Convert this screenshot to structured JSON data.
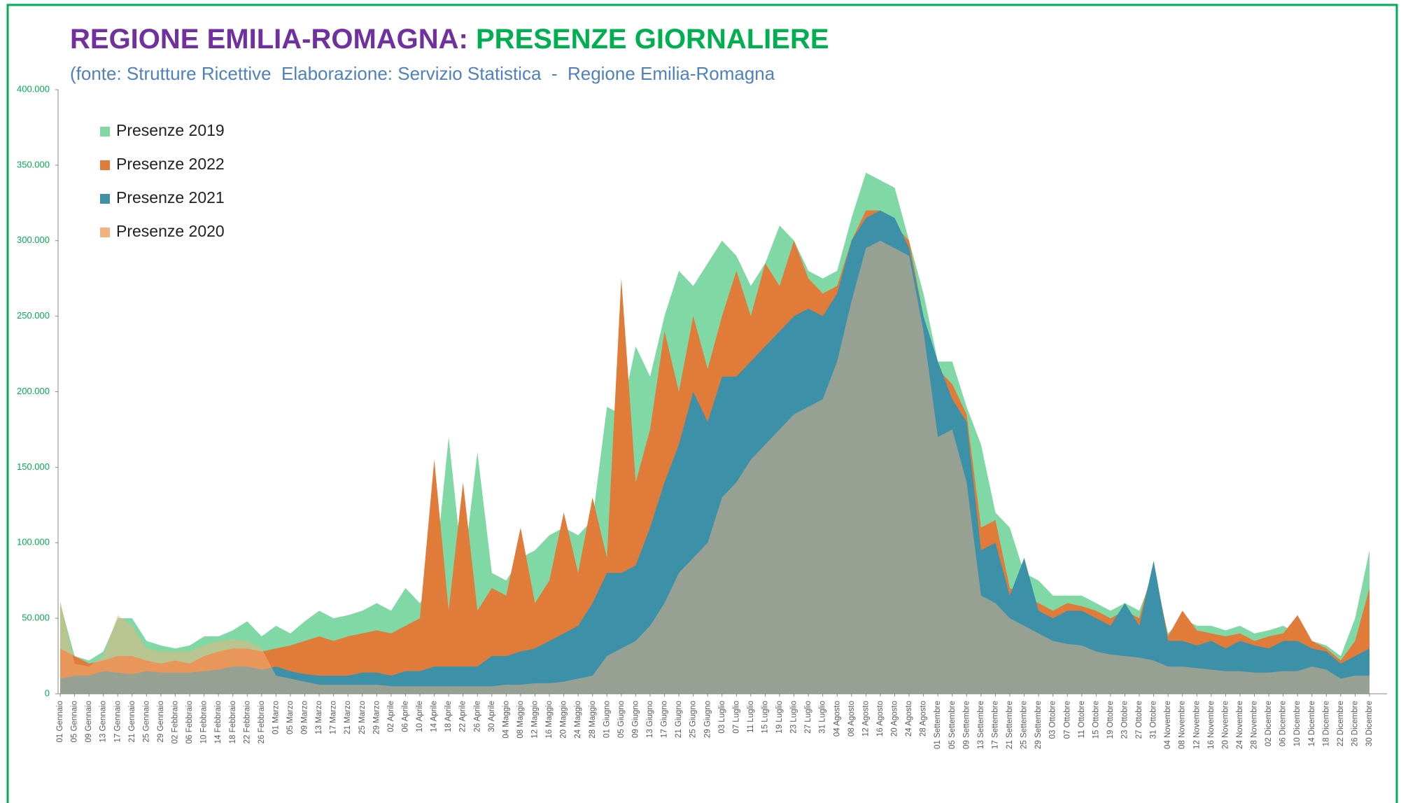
{
  "chart_data": {
    "type": "area",
    "title": "REGIONE EMILIA-ROMAGNA:",
    "title_highlight": "PRESENZE GIORNALIERE",
    "subtitle": "(fonte: Strutture Ricettive  Elaborazione: Servizio Statistica  -  Regione Emilia-Romagna",
    "categories": [
      "01 Gennaio",
      "05 Gennaio",
      "09 Gennaio",
      "13 Gennaio",
      "17 Gennaio",
      "21 Gennaio",
      "25 Gennaio",
      "29 Gennaio",
      "02 Febbraio",
      "06 Febbraio",
      "10 Febbraio",
      "14 Febbraio",
      "18 Febbraio",
      "22 Febbraio",
      "26 Febbraio",
      "01 Marzo",
      "05 Marzo",
      "09 Marzo",
      "13 Marzo",
      "17 Marzo",
      "21 Marzo",
      "25 Marzo",
      "29 Marzo",
      "02 Aprile",
      "06 Aprile",
      "10 Aprile",
      "14 Aprile",
      "18 Aprile",
      "22 Aprile",
      "26 Aprile",
      "30 Aprile",
      "04 Maggio",
      "08 Maggio",
      "12 Maggio",
      "16 Maggio",
      "20 Maggio",
      "24 Maggio",
      "28 Maggio",
      "01 Giugno",
      "05 Giugno",
      "09 Giugno",
      "13 Giugno",
      "17 Giugno",
      "21 Giugno",
      "25 Giugno",
      "29 Giugno",
      "03 Luglio",
      "07 Luglio",
      "11 Luglio",
      "15 Luglio",
      "19 Luglio",
      "23 Luglio",
      "27 Luglio",
      "31 Luglio",
      "04 Agosto",
      "08 Agosto",
      "12 Agosto",
      "16 Agosto",
      "20 Agosto",
      "24 Agosto",
      "28 Agosto",
      "01 Settembre",
      "05 Settembre",
      "09 Settembre",
      "13 Settembre",
      "17 Settembre",
      "21 Settembre",
      "25 Settembre",
      "29 Settembre",
      "03 Ottobre",
      "07 Ottobre",
      "11 Ottobre",
      "15 Ottobre",
      "19 Ottobre",
      "23 Ottobre",
      "27 Ottobre",
      "31 Ottobre",
      "04 Novembre",
      "08 Novembre",
      "12 Novembre",
      "16 Novembre",
      "20 Novembre",
      "24 Novembre",
      "28 Novembre",
      "02 Dicembre",
      "06 Dicembre",
      "10 Dicembre",
      "14 Dicembre",
      "18 Dicembre",
      "22 Dicembre",
      "26 Dicembre",
      "30 Dicembre"
    ],
    "series": [
      {
        "name": "Presenze 2019",
        "color": "#80d8a4",
        "values": [
          60000,
          25000,
          22000,
          28000,
          50000,
          50000,
          35000,
          32000,
          30000,
          32000,
          38000,
          38000,
          42000,
          48000,
          38000,
          45000,
          40000,
          48000,
          55000,
          50000,
          52000,
          55000,
          60000,
          55000,
          70000,
          60000,
          75000,
          170000,
          80000,
          160000,
          80000,
          75000,
          90000,
          95000,
          105000,
          110000,
          105000,
          115000,
          190000,
          185000,
          230000,
          210000,
          250000,
          280000,
          270000,
          285000,
          300000,
          290000,
          270000,
          285000,
          310000,
          300000,
          280000,
          275000,
          280000,
          315000,
          345000,
          340000,
          335000,
          300000,
          265000,
          220000,
          220000,
          190000,
          165000,
          120000,
          110000,
          80000,
          75000,
          65000,
          65000,
          65000,
          60000,
          55000,
          60000,
          55000,
          80000,
          40000,
          50000,
          45000,
          45000,
          42000,
          45000,
          40000,
          42000,
          45000,
          40000,
          35000,
          32000,
          25000,
          50000,
          95000
        ]
      },
      {
        "name": "Presenze 2022",
        "color": "#e07b39",
        "values": [
          30000,
          25000,
          20000,
          22000,
          25000,
          25000,
          22000,
          20000,
          22000,
          20000,
          25000,
          28000,
          30000,
          30000,
          28000,
          30000,
          32000,
          35000,
          38000,
          35000,
          38000,
          40000,
          42000,
          40000,
          45000,
          50000,
          155000,
          55000,
          140000,
          55000,
          70000,
          65000,
          110000,
          60000,
          75000,
          120000,
          80000,
          130000,
          90000,
          275000,
          140000,
          175000,
          240000,
          200000,
          250000,
          215000,
          250000,
          280000,
          250000,
          285000,
          270000,
          300000,
          275000,
          265000,
          270000,
          300000,
          320000,
          320000,
          310000,
          300000,
          250000,
          215000,
          205000,
          185000,
          110000,
          115000,
          70000,
          65000,
          60000,
          55000,
          60000,
          58000,
          55000,
          50000,
          55000,
          50000,
          85000,
          38000,
          55000,
          42000,
          40000,
          38000,
          40000,
          35000,
          38000,
          40000,
          52000,
          35000,
          30000,
          22000,
          35000,
          70000
        ]
      },
      {
        "name": "Presenze 2021",
        "color": "#3c91a8",
        "values": [
          10000,
          12000,
          12000,
          15000,
          14000,
          13000,
          15000,
          14000,
          14000,
          14000,
          15000,
          16000,
          18000,
          18000,
          16000,
          18000,
          15000,
          13000,
          12000,
          12000,
          12000,
          14000,
          14000,
          12000,
          15000,
          15000,
          18000,
          18000,
          18000,
          18000,
          25000,
          25000,
          28000,
          30000,
          35000,
          40000,
          45000,
          60000,
          80000,
          80000,
          85000,
          110000,
          140000,
          165000,
          200000,
          180000,
          210000,
          210000,
          220000,
          230000,
          240000,
          250000,
          255000,
          250000,
          265000,
          300000,
          315000,
          320000,
          315000,
          295000,
          250000,
          220000,
          195000,
          180000,
          95000,
          100000,
          65000,
          90000,
          55000,
          50000,
          55000,
          55000,
          50000,
          45000,
          60000,
          45000,
          88000,
          35000,
          35000,
          32000,
          35000,
          30000,
          35000,
          32000,
          30000,
          35000,
          35000,
          30000,
          28000,
          20000,
          25000,
          30000
        ]
      },
      {
        "name": "Presenze 2020",
        "color": "#f2b27e",
        "values": [
          62000,
          20000,
          18000,
          25000,
          52000,
          45000,
          30000,
          28000,
          28000,
          28000,
          32000,
          35000,
          36000,
          35000,
          30000,
          12000,
          10000,
          8000,
          6000,
          6000,
          6000,
          6000,
          6000,
          5000,
          5000,
          5000,
          5000,
          5000,
          5000,
          5000,
          5000,
          6000,
          6000,
          7000,
          7000,
          8000,
          10000,
          12000,
          25000,
          30000,
          35000,
          45000,
          60000,
          80000,
          90000,
          100000,
          130000,
          140000,
          155000,
          165000,
          175000,
          185000,
          190000,
          195000,
          220000,
          260000,
          295000,
          300000,
          295000,
          290000,
          240000,
          170000,
          175000,
          140000,
          65000,
          60000,
          50000,
          45000,
          40000,
          35000,
          33000,
          32000,
          28000,
          26000,
          25000,
          24000,
          22000,
          18000,
          18000,
          17000,
          16000,
          15000,
          15000,
          14000,
          14000,
          15000,
          15000,
          18000,
          16000,
          10000,
          12000,
          12000
        ]
      }
    ],
    "ylim": [
      0,
      400000
    ],
    "yticks": [
      0,
      {
        "value": 50000,
        "label": "50.000"
      },
      {
        "value": 100000,
        "label": "100.000"
      },
      {
        "value": 150000,
        "label": "150.000"
      },
      {
        "value": 200000,
        "label": "200.000"
      },
      {
        "value": 250000,
        "label": "250.000"
      },
      {
        "value": 300000,
        "label": "300.000"
      },
      {
        "value": 350000,
        "label": "350.000"
      },
      {
        "value": 400000,
        "label": "400.000"
      }
    ],
    "legend": "upper left"
  }
}
